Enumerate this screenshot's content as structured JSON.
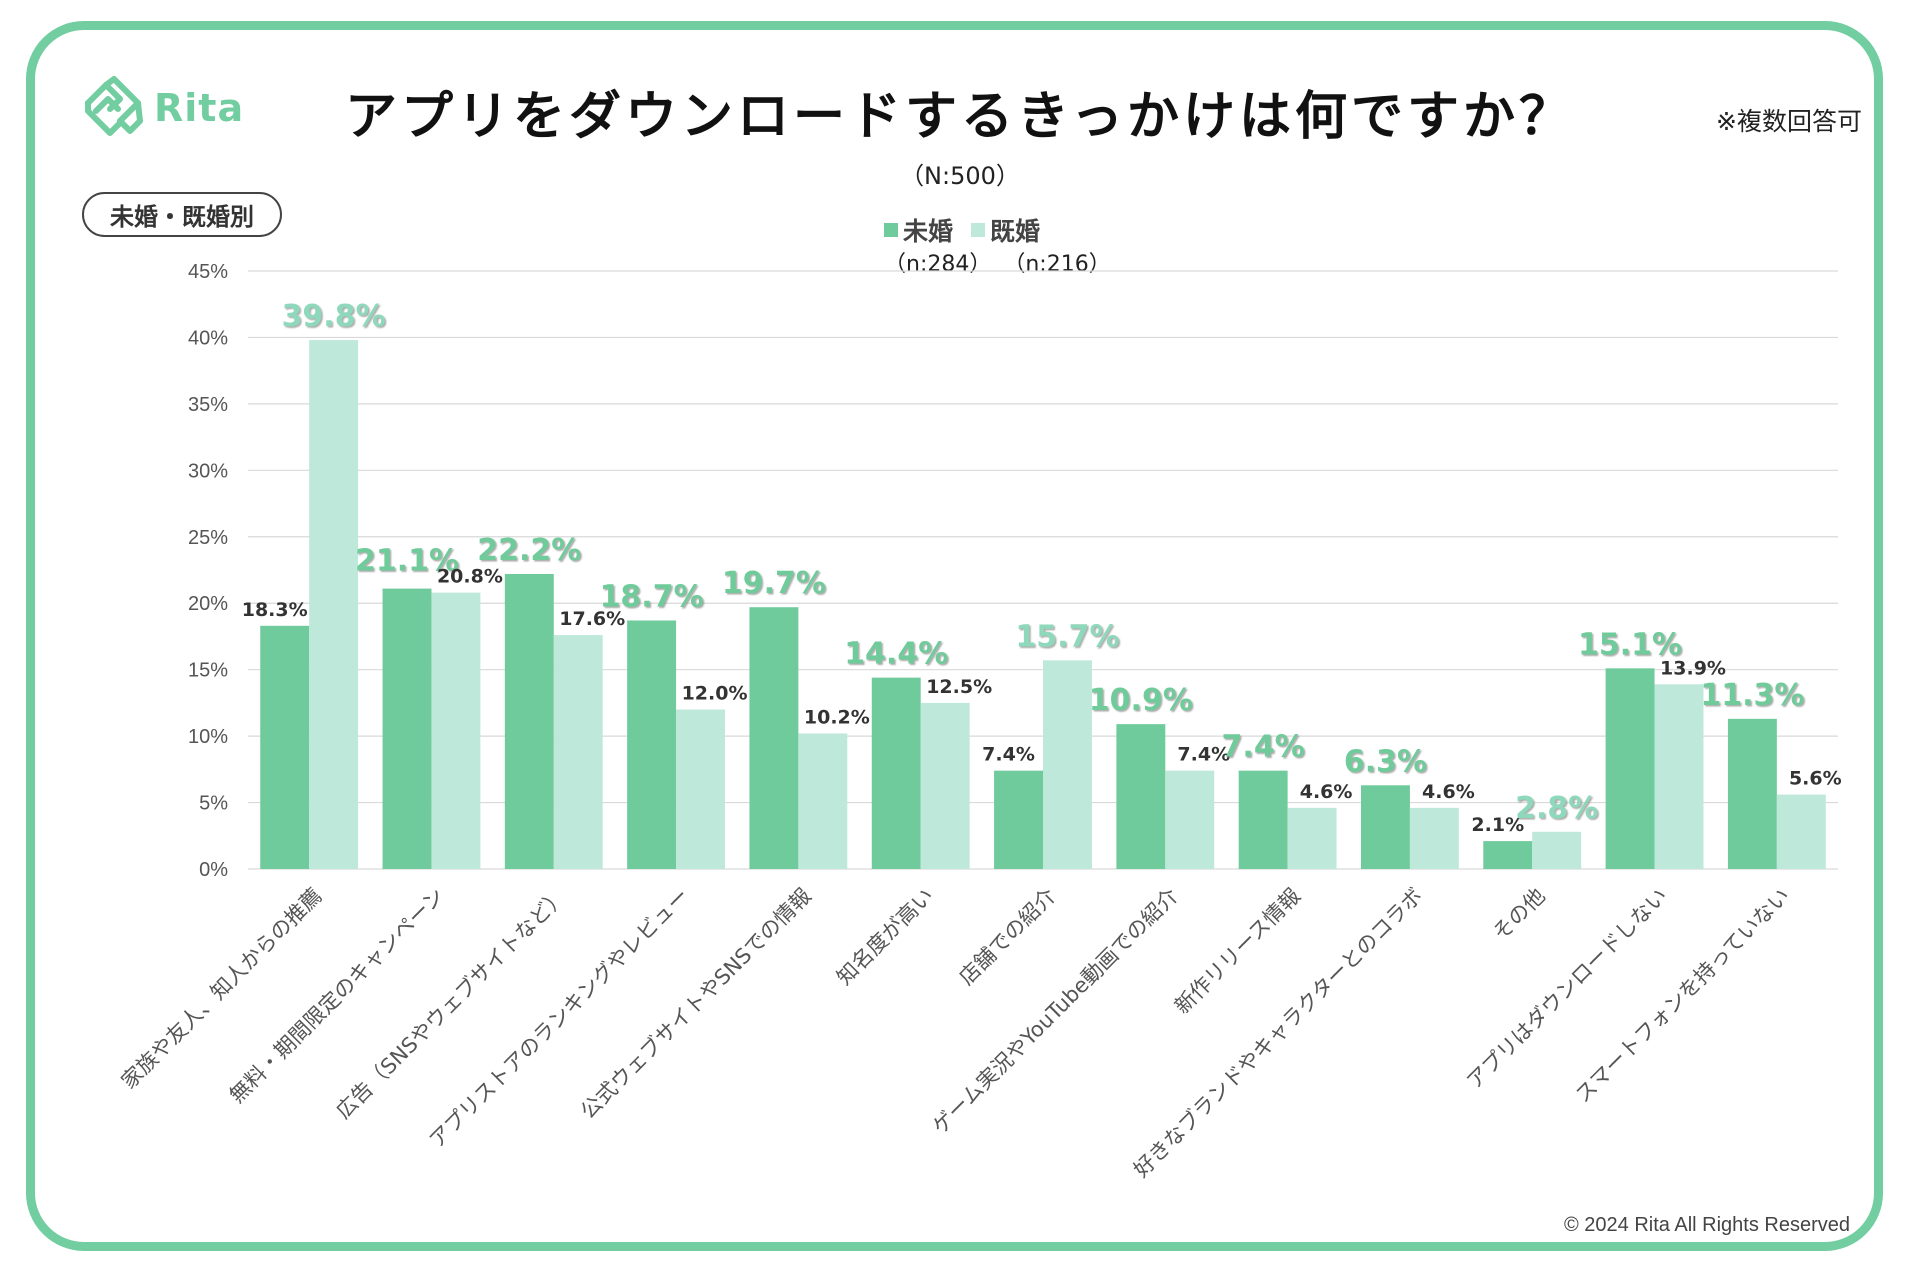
{
  "header": {
    "logo_text": "Rita",
    "title": "アプリをダウンロードするきっかけは何ですか？",
    "note": "※複数回答可",
    "sample": "（N:500）",
    "segment_pill": "未婚・既婚別"
  },
  "legend": [
    {
      "label": "未婚",
      "n": "（n:284）",
      "color": "#6FCB9B"
    },
    {
      "label": "既婚",
      "n": "（n:216）",
      "color": "#BEE8DA"
    }
  ],
  "footer": {
    "copyright": "© 2024 Rita All Rights Reserved"
  },
  "colors": {
    "frame": "#72CDA0",
    "series1": "#6FCB9B",
    "series2": "#BEE8DA",
    "highlight1": "#6FCB9B",
    "highlight2": "#8ED8BB",
    "grid": "#D9D9D9"
  },
  "chart_data": {
    "type": "bar",
    "title": "アプリをダウンロードするきっかけは何ですか？",
    "xlabel": "",
    "ylabel": "",
    "ylim": [
      0,
      45
    ],
    "yticks": [
      0,
      5,
      10,
      15,
      20,
      25,
      30,
      35,
      40,
      45
    ],
    "ytick_labels": [
      "0%",
      "5%",
      "10%",
      "15%",
      "20%",
      "25%",
      "30%",
      "35%",
      "40%",
      "45%"
    ],
    "grid": true,
    "legend_position": "top-center",
    "categories": [
      "家族や友人、知人からの推薦",
      "無料・期間限定のキャンペーン",
      "広告（SNSやウェブサイトなど）",
      "アプリストアのランキングやレビュー",
      "公式ウェブサイトやSNSでの情報",
      "知名度が高い",
      "店舗での紹介",
      "ゲーム実況やYouTube動画での紹介",
      "新作リリース情報",
      "好きなブランドやキャラクターとのコラボ",
      "その他",
      "アプリはダウンロードしない",
      "スマートフォンを持っていない"
    ],
    "series": [
      {
        "name": "未婚",
        "n": 284,
        "values": [
          18.3,
          21.1,
          22.2,
          18.7,
          19.7,
          14.4,
          7.4,
          10.9,
          7.4,
          6.3,
          2.1,
          15.1,
          11.3
        ]
      },
      {
        "name": "既婚",
        "n": 216,
        "values": [
          39.8,
          20.8,
          17.6,
          12.0,
          10.2,
          12.5,
          15.7,
          7.4,
          4.6,
          4.6,
          2.8,
          13.9,
          5.6
        ]
      }
    ],
    "highlighted_series_index": [
      1,
      0,
      0,
      0,
      0,
      0,
      1,
      0,
      0,
      0,
      1,
      0,
      0
    ],
    "value_suffix": "%"
  }
}
